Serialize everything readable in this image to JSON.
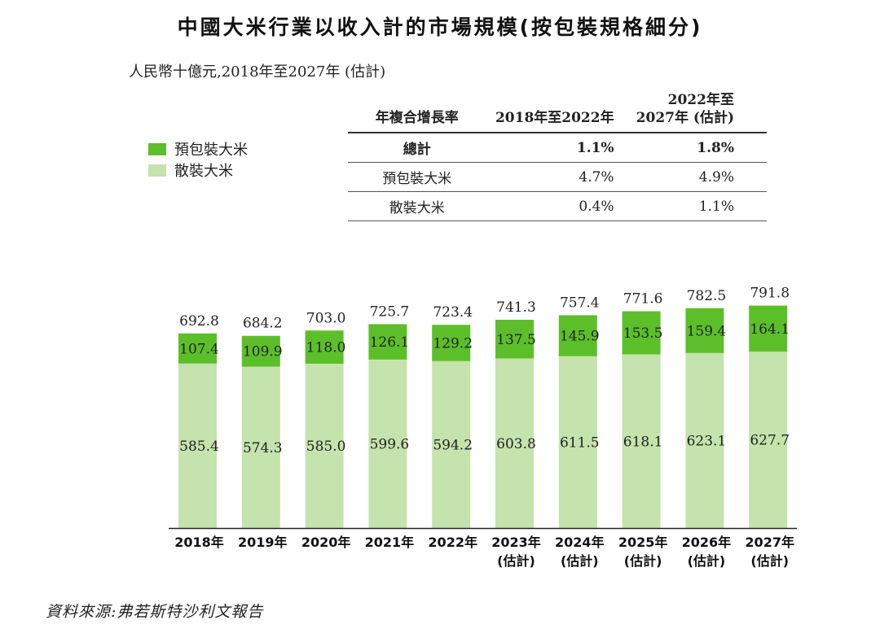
{
  "title": "中國大米行業以收入計的市場規模(按包裝規格細分)",
  "subtitle": "人民幣十億元,2018年至2027年 (估計)",
  "legend": [
    {
      "name": "預包裝大米",
      "color": "#5cbf2a"
    },
    {
      "name": "散裝大米",
      "color": "#c5e3ad"
    }
  ],
  "cagr_table": {
    "header": {
      "label": "年複合增長率",
      "period1": "2018年至2022年",
      "period2_line1": "2022年至",
      "period2_line2": "2027年 (估計)"
    },
    "rows": [
      {
        "label": "總計",
        "p1": "1.1%",
        "p2": "1.8%"
      },
      {
        "label": "預包裝大米",
        "p1": "4.7%",
        "p2": "4.9%"
      },
      {
        "label": "散裝大米",
        "p1": "0.4%",
        "p2": "1.1%"
      }
    ]
  },
  "chart_data": {
    "type": "bar",
    "stacked": true,
    "categories": [
      "2018年",
      "2019年",
      "2020年",
      "2021年",
      "2022年",
      "2023年",
      "2024年",
      "2025年",
      "2026年",
      "2027年"
    ],
    "category_notes": [
      "",
      "",
      "",
      "",
      "",
      "(估計)",
      "(估計)",
      "(估計)",
      "(估計)",
      "(估計)"
    ],
    "series": [
      {
        "name": "散裝大米",
        "color": "#c5e3ad",
        "values": [
          585.4,
          574.3,
          585.0,
          599.6,
          594.2,
          603.8,
          611.5,
          618.1,
          623.1,
          627.7
        ],
        "labels": [
          "585.4",
          "574.3",
          "585.0",
          "599.6",
          "594.2",
          "603.8",
          "611.5",
          "618.1",
          "623.1",
          "627.7"
        ]
      },
      {
        "name": "預包裝大米",
        "color": "#5cbf2a",
        "values": [
          107.4,
          109.9,
          118.0,
          126.1,
          129.2,
          137.5,
          145.9,
          153.5,
          159.4,
          164.1
        ],
        "labels": [
          "107.4",
          "109.9",
          "118.0",
          "126.1",
          "129.2",
          "137.5",
          "145.9",
          "153.5",
          "159.4",
          "164.1"
        ]
      }
    ],
    "totals": [
      "692.8",
      "684.2",
      "703.0",
      "725.7",
      "723.4",
      "741.3",
      "757.4",
      "771.6",
      "782.5",
      "791.8"
    ],
    "ylim": [
      0,
      800
    ]
  },
  "source": "資料來源:弗若斯特沙利文報告"
}
